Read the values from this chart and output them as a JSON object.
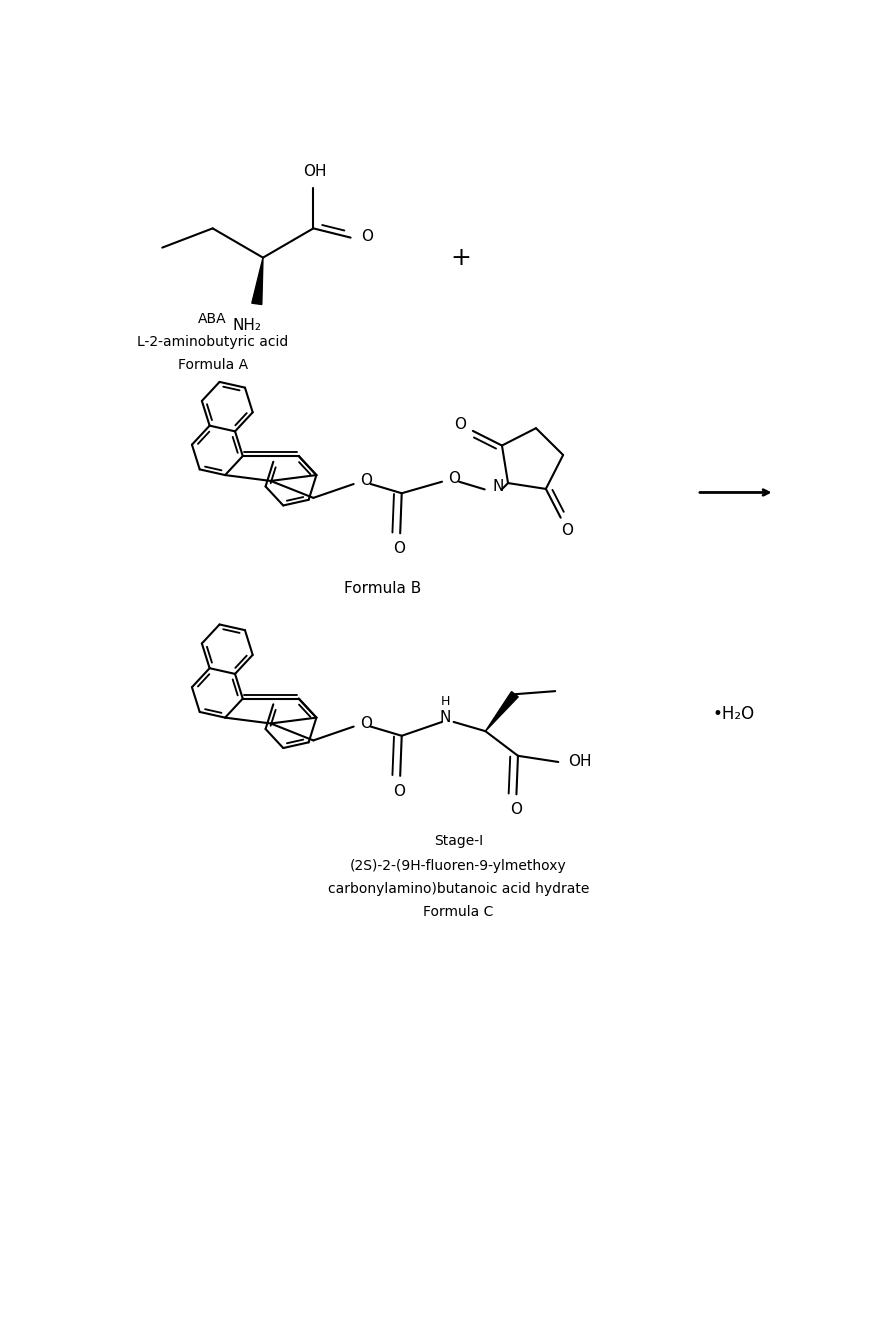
{
  "bg_color": "#ffffff",
  "line_color": "#000000",
  "line_width": 1.5,
  "fig_width": 8.95,
  "fig_height": 13.32,
  "formula_a_labels": [
    "ABA",
    "L-2-aminobutyric acid",
    "Formula A"
  ],
  "formula_b_label": "Formula B",
  "formula_c_labels": [
    "Stage-I",
    "(2S)-2-(9H-fluoren-9-ylmethoxy",
    "carbonylamino)butanoic acid hydrate",
    "Formula C"
  ]
}
